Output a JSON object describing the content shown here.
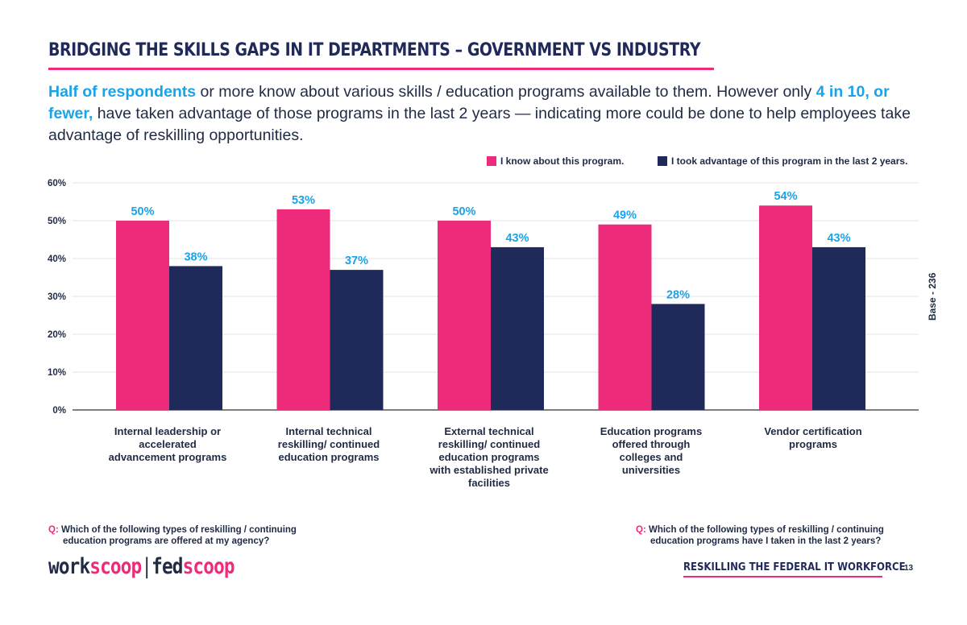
{
  "header": {
    "title": "BRIDGING THE SKILLS GAPS IN IT DEPARTMENTS – GOVERNMENT VS INDUSTRY",
    "intro": {
      "hl1": "Half of respondents",
      "t1": " or more know about various skills / education programs available to them. However only ",
      "hl2": "4 in 10, or fewer,",
      "t2": " have taken advantage of those programs in the last 2 years — indicating more could be done to help employees take advantage of reskilling opportunities."
    }
  },
  "colors": {
    "pink": "#ee2a7b",
    "navy": "#1f2a5a",
    "label": "#1aa3e8",
    "grid": "#e3e3e3"
  },
  "chart_data": {
    "type": "bar",
    "categories": [
      "Internal leadership or accelerated advancement programs",
      "Internal technical reskilling/ continued education programs",
      "External technical reskilling/ continued education programs with established private facilities",
      "Education programs offered through colleges and universities",
      "Vendor certification programs"
    ],
    "series": [
      {
        "name": "I know about this program.",
        "values": [
          50,
          53,
          50,
          49,
          54
        ],
        "labels": [
          "50%",
          "53%",
          "50%",
          "49%",
          "54%"
        ]
      },
      {
        "name": "I took advantage of this program in the last 2 years.",
        "values": [
          38,
          37,
          43,
          28,
          43
        ],
        "labels": [
          "38%",
          "37%",
          "43%",
          "28%",
          "43%"
        ]
      }
    ],
    "yticks": [
      "0%",
      "10%",
      "20%",
      "30%",
      "40%",
      "50%",
      "60%"
    ],
    "ylim": [
      0,
      60
    ],
    "grid": true,
    "legend": "top-right"
  },
  "side_note": "Base - 236",
  "questions": [
    {
      "key": "Q:",
      "line1": "Which of the following types of reskilling / continuing",
      "line2": "education programs are offered at my agency?"
    },
    {
      "key": "Q:",
      "line1": "Which of the following types of reskilling / continuing",
      "line2": "education programs have I taken in the last 2 years?"
    }
  ],
  "footer": {
    "logo": {
      "work_a": "work",
      "work_b": "scoop",
      "sep": "|",
      "fed_a": "fed",
      "fed_b": "scoop"
    },
    "report": "RESKILLING THE FEDERAL IT WORKFORCE",
    "page": "13"
  }
}
